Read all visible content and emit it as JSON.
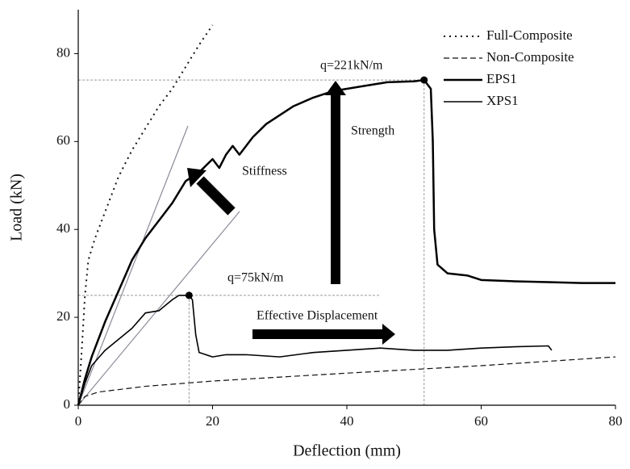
{
  "chart_data": {
    "type": "line",
    "xlabel": "Deflection (mm)",
    "ylabel": "Load (kN)",
    "xlim": [
      0,
      80
    ],
    "ylim": [
      0,
      90
    ],
    "xticks": [
      0,
      20,
      40,
      60,
      80
    ],
    "yticks": [
      0,
      20,
      40,
      60,
      80
    ],
    "legend": "upper right",
    "series": [
      {
        "name": "Full-Composite",
        "color": "#111111",
        "style": "dotted",
        "width": 2,
        "x": [
          0,
          0.5,
          1,
          1.5,
          2.5,
          4,
          6,
          8,
          10,
          12,
          14,
          16,
          18,
          20
        ],
        "values": [
          0,
          12,
          25,
          33,
          38,
          44,
          52,
          58,
          63,
          68,
          72,
          77,
          82,
          86.5
        ]
      },
      {
        "name": "Non-Composite",
        "color": "#111111",
        "style": "dashed",
        "width": 1.2,
        "x": [
          0,
          1,
          3,
          10,
          20,
          40,
          60,
          80
        ],
        "values": [
          0,
          2,
          3,
          4.3,
          5.5,
          7.3,
          9,
          11
        ]
      },
      {
        "name": "EPS1",
        "color": "#000000",
        "style": "solid",
        "width": 2.5,
        "x": [
          0,
          1,
          2,
          4,
          6,
          8,
          10,
          12,
          14,
          16,
          18,
          20,
          21,
          22,
          23,
          24,
          26,
          28,
          30,
          32,
          35,
          38,
          42,
          46,
          50,
          51.5,
          52.5,
          52.8,
          53,
          53.5,
          55,
          58,
          60,
          65,
          70,
          75,
          80
        ],
        "values": [
          0,
          6,
          11,
          19,
          26,
          33,
          38,
          42,
          46,
          51,
          53,
          56,
          54,
          57,
          59,
          57,
          61,
          64,
          66,
          68,
          70,
          71.5,
          72.5,
          73.5,
          73.7,
          74,
          72,
          60,
          40,
          32,
          30,
          29.5,
          28.5,
          28.2,
          28,
          27.8,
          27.8
        ]
      },
      {
        "name": "XPS1",
        "color": "#000000",
        "style": "solid",
        "width": 1.6,
        "x": [
          0,
          1,
          2,
          4,
          6,
          8,
          10,
          12,
          14,
          15,
          16.5,
          17,
          17.5,
          18,
          20,
          22,
          25,
          30,
          35,
          40,
          45,
          50,
          55,
          60,
          65,
          70,
          70.5
        ],
        "values": [
          0,
          5,
          9,
          12.5,
          15,
          17.5,
          21,
          21.5,
          24,
          25,
          25,
          24,
          16,
          12,
          11,
          11.5,
          11.5,
          11,
          12,
          12.5,
          13,
          12.5,
          12.5,
          13,
          13.3,
          13.5,
          12.5
        ]
      }
    ],
    "markers": [
      {
        "x": 51.5,
        "y": 74
      },
      {
        "x": 16.5,
        "y": 25
      }
    ],
    "annotations": [
      "q=221kN/m",
      "q=75kN/m",
      "Stiffness",
      "Strength",
      "Effective Displacement"
    ]
  }
}
